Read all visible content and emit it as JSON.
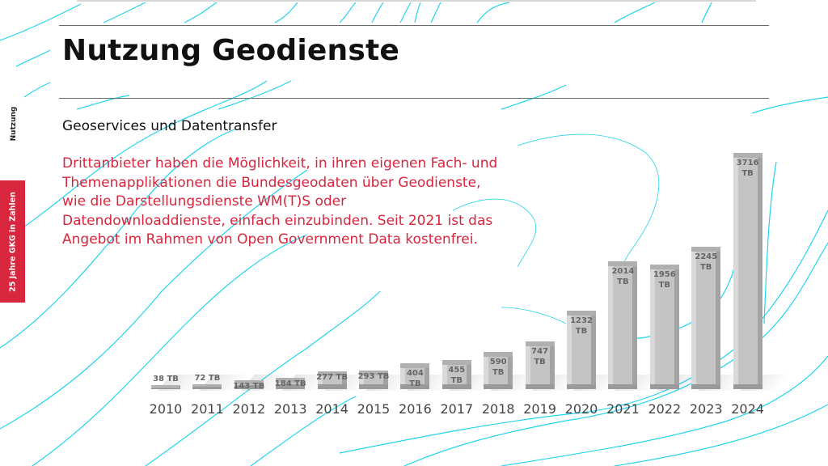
{
  "slide": {
    "title": "Nutzung Geodienste",
    "section_label": "Nutzung",
    "side_tab_label": "25 Jahre GKG in Zahlen",
    "subtitle": "Geoservices und Datentransfer",
    "body": "Drittanbieter haben die Möglichkeit, in ihren eigenen Fach- und Themenapplikationen die Bundesgeodaten über Geodienste, wie die Darstellungsdienste WM(T)S oder Datendownloaddienste, einfach einzubinden. Seit 2021 ist das Angebot im Rahmen von Open Government Data kostenfrei.",
    "colors": {
      "accent_red": "#d7263d",
      "contour_cyan": "#22d3ee",
      "bar_gray": "#c4c4c4",
      "text_dark": "#111111"
    }
  },
  "chart_data": {
    "type": "bar",
    "title": "",
    "xlabel": "",
    "ylabel": "",
    "unit": "TB",
    "categories": [
      "2010",
      "2011",
      "2012",
      "2013",
      "2014",
      "2015",
      "2016",
      "2017",
      "2018",
      "2019",
      "2020",
      "2021",
      "2022",
      "2023",
      "2024"
    ],
    "values": [
      38,
      72,
      143,
      184,
      277,
      293,
      404,
      455,
      590,
      747,
      1232,
      2014,
      1956,
      2245,
      3716
    ],
    "labels": [
      "38 TB",
      "72 TB",
      "143 TB",
      "184 TB",
      "277 TB",
      "293 TB",
      "404 TB",
      "455 TB",
      "590 TB",
      "747 TB",
      "1232 TB",
      "2014 TB",
      "1956 TB",
      "2245 TB",
      "3716 TB"
    ],
    "ylim": [
      0,
      3716
    ],
    "grid": false,
    "legend": false,
    "style": "3d-beveled-gray"
  }
}
